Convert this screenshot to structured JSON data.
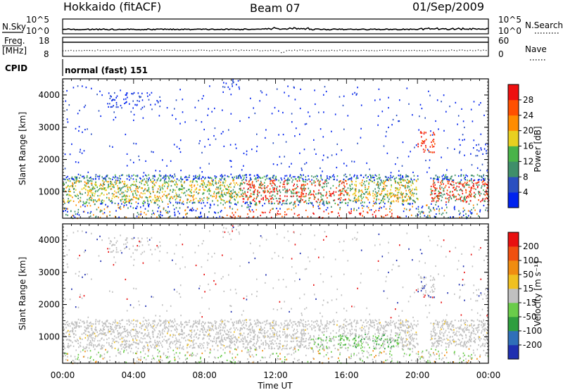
{
  "header": {
    "station": "Hokkaido (fitACF)",
    "beam": "Beam 07",
    "date": "01/Sep/2009"
  },
  "top_panels": {
    "nsky_label": "N.Sky",
    "nsearch_label": "N.Search",
    "nsky_ticks": [
      "10^5",
      "10^0"
    ],
    "nsearch_ticks": [
      "10^5",
      "10^0"
    ],
    "freq_label_1": "Freq.",
    "freq_label_2": "[MHz]",
    "freq_ticks": [
      "18",
      "8"
    ],
    "nave_label": "Nave",
    "nave_ticks": [
      "60",
      "0"
    ],
    "cpid_label": "CPID",
    "cpid_value": "normal (fast) 151"
  },
  "chart_data": [
    {
      "type": "heatmap",
      "name": "power-panel",
      "ylabel": "Slant Range [km]",
      "yticks": [
        1000,
        2000,
        3000,
        4000
      ],
      "ylim": [
        180,
        4500
      ],
      "xlim_hours": [
        0,
        24
      ],
      "colorbar": {
        "label": "Power [dB]",
        "ticks": [
          "4",
          "8",
          "12",
          "16",
          "20",
          "24",
          "28"
        ],
        "colors": [
          "#0022ee",
          "#2a4fc0",
          "#3f8f6a",
          "#49b349",
          "#e8d020",
          "#ff8c00",
          "#ff5000",
          "#ee1010"
        ]
      }
    },
    {
      "type": "heatmap",
      "name": "velocity-panel",
      "ylabel": "Slant Range [km]",
      "yticks": [
        1000,
        2000,
        3000,
        4000
      ],
      "ylim": [
        180,
        4500
      ],
      "xlim_hours": [
        0,
        24
      ],
      "colorbar": {
        "label": "Velocity [m s⁻¹]",
        "ticks": [
          "200",
          "100",
          "50",
          "15",
          "-15",
          "-50",
          "-100",
          "-200"
        ],
        "colors": [
          "#1f2fb0",
          "#2f6fb8",
          "#2e9e3e",
          "#6acc4a",
          "#c0c0c0",
          "#f0c020",
          "#f08c10",
          "#f05010",
          "#e81010"
        ]
      }
    }
  ],
  "x_axis": {
    "ticks": [
      "00:00",
      "04:00",
      "08:00",
      "12:00",
      "16:00",
      "20:00",
      "00:00"
    ],
    "label": "Time UT"
  }
}
